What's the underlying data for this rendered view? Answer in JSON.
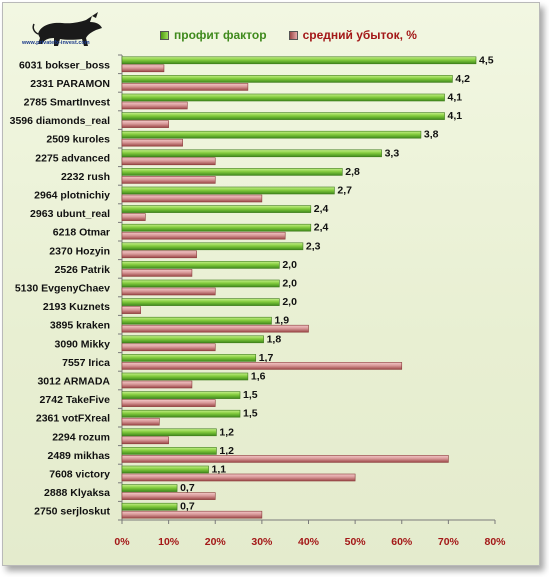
{
  "logo": {
    "url_text": "www.privatefx-invest.com",
    "icon": "bull-icon"
  },
  "legend": {
    "series1": "профит фактор",
    "series2": "средний убыток, %"
  },
  "colors": {
    "series1": "#7cc23a",
    "series1_dark": "#3f8a1c",
    "series2": "#d99a9a",
    "series2_dark": "#9b4747",
    "axis_ticks": "#a31818"
  },
  "chart_data": {
    "type": "bar",
    "orientation": "horizontal",
    "categories": [
      "6031 bokser_boss",
      "2331 PARAMON",
      "2785 SmartInvest",
      "3596 diamonds_real",
      "2509 kuroles",
      "2275 advanced",
      "2232 rush",
      "2964 plotnichiy",
      "2963 ubunt_real",
      "6218 Otmar",
      "2370 Hozyin",
      "2526 Patrik",
      "5130 EvgenyChaev",
      "2193 Kuznets",
      "3895 kraken",
      "3090 Mikky",
      "7557 Irica",
      "3012 ARMADA",
      "2742 TakeFive",
      "2361 votFXreal",
      "2294 rozum",
      "2489 mikhas",
      "7608 victory",
      "2888 Klyaksa",
      "2750 serjloskut"
    ],
    "series": [
      {
        "name": "профит фактор",
        "values": [
          4.5,
          4.2,
          4.1,
          4.1,
          3.8,
          3.3,
          2.8,
          2.7,
          2.4,
          2.4,
          2.3,
          2.0,
          2.0,
          2.0,
          1.9,
          1.8,
          1.7,
          1.6,
          1.5,
          1.5,
          1.2,
          1.2,
          1.1,
          0.7,
          0.7
        ],
        "labels": [
          "4,5",
          "4,2",
          "4,1",
          "4,1",
          "3,8",
          "3,3",
          "2,8",
          "2,7",
          "2,4",
          "2,4",
          "2,3",
          "2,0",
          "2,0",
          "2,0",
          "1,9",
          "1,8",
          "1,7",
          "1,6",
          "1,5",
          "1,5",
          "1,2",
          "1,2",
          "1,1",
          "0,7",
          "0,7"
        ]
      },
      {
        "name": "средний убыток, %",
        "values": [
          9,
          27,
          14,
          10,
          13,
          20,
          20,
          30,
          5,
          35,
          16,
          15,
          20,
          4,
          40,
          20,
          60,
          15,
          20,
          8,
          10,
          70,
          50,
          20,
          30
        ]
      }
    ],
    "xticks": [
      "0%",
      "10%",
      "20%",
      "30%",
      "40%",
      "50%",
      "60%",
      "70%",
      "80%"
    ],
    "xlim": [
      0,
      80
    ],
    "grid": false,
    "legend_position": "top"
  }
}
